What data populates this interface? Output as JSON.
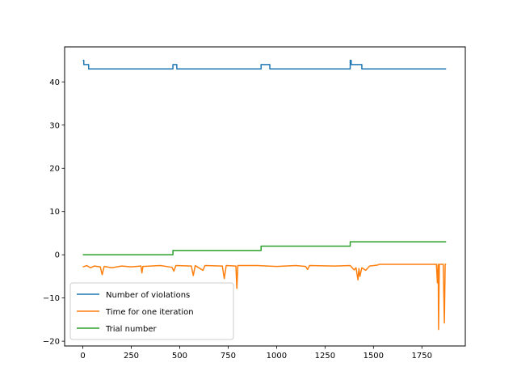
{
  "chart_data": {
    "type": "line",
    "title": "",
    "xlabel": "",
    "ylabel": "",
    "xlim": [
      -94,
      1974
    ],
    "ylim": [
      -21.1,
      48.1
    ],
    "xticks": [
      0,
      250,
      500,
      750,
      1000,
      1250,
      1500,
      1750
    ],
    "yticks": [
      -20,
      -10,
      0,
      10,
      20,
      30,
      40
    ],
    "grid": false,
    "legend_position": "lower-left",
    "series": [
      {
        "name": "Number of violations",
        "color": "#1f77b4",
        "points": [
          [
            0,
            45
          ],
          [
            5,
            45
          ],
          [
            5,
            44
          ],
          [
            30,
            44
          ],
          [
            30,
            43
          ],
          [
            465,
            43
          ],
          [
            465,
            44
          ],
          [
            485,
            44
          ],
          [
            485,
            43
          ],
          [
            920,
            43
          ],
          [
            920,
            44
          ],
          [
            965,
            44
          ],
          [
            965,
            43
          ],
          [
            1380,
            43
          ],
          [
            1380,
            45
          ],
          [
            1385,
            45
          ],
          [
            1385,
            44
          ],
          [
            1440,
            44
          ],
          [
            1440,
            43
          ],
          [
            1875,
            43
          ]
        ]
      },
      {
        "name": "Time for one iteration",
        "color": "#ff7f0e",
        "points": [
          [
            0,
            -2.8
          ],
          [
            20,
            -2.5
          ],
          [
            40,
            -3.0
          ],
          [
            60,
            -2.6
          ],
          [
            90,
            -2.8
          ],
          [
            100,
            -4.6
          ],
          [
            110,
            -2.7
          ],
          [
            150,
            -3.0
          ],
          [
            200,
            -2.6
          ],
          [
            250,
            -2.8
          ],
          [
            300,
            -2.6
          ],
          [
            305,
            -4.2
          ],
          [
            310,
            -2.7
          ],
          [
            400,
            -2.5
          ],
          [
            460,
            -2.9
          ],
          [
            470,
            -3.8
          ],
          [
            480,
            -2.5
          ],
          [
            560,
            -2.6
          ],
          [
            570,
            -4.8
          ],
          [
            580,
            -2.5
          ],
          [
            620,
            -3.6
          ],
          [
            630,
            -2.5
          ],
          [
            720,
            -2.6
          ],
          [
            730,
            -5.5
          ],
          [
            740,
            -2.5
          ],
          [
            790,
            -2.6
          ],
          [
            795,
            -7.8
          ],
          [
            800,
            -2.5
          ],
          [
            900,
            -2.5
          ],
          [
            1000,
            -2.7
          ],
          [
            1100,
            -2.5
          ],
          [
            1150,
            -2.7
          ],
          [
            1160,
            -3.4
          ],
          [
            1170,
            -2.5
          ],
          [
            1300,
            -2.6
          ],
          [
            1380,
            -2.5
          ],
          [
            1400,
            -3.5
          ],
          [
            1410,
            -3.0
          ],
          [
            1420,
            -5.8
          ],
          [
            1425,
            -3.2
          ],
          [
            1430,
            -5.0
          ],
          [
            1440,
            -3.0
          ],
          [
            1460,
            -3.6
          ],
          [
            1480,
            -2.6
          ],
          [
            1520,
            -2.4
          ],
          [
            1530,
            -2.2
          ],
          [
            1600,
            -2.2
          ],
          [
            1700,
            -2.2
          ],
          [
            1800,
            -2.2
          ],
          [
            1825,
            -2.2
          ],
          [
            1830,
            -6.5
          ],
          [
            1834,
            -2.2
          ],
          [
            1836,
            -17.3
          ],
          [
            1840,
            -2.2
          ],
          [
            1860,
            -2.2
          ],
          [
            1866,
            -15.8
          ],
          [
            1870,
            -2.2
          ],
          [
            1875,
            -2.2
          ]
        ]
      },
      {
        "name": "Trial number",
        "color": "#2ca02c",
        "points": [
          [
            0,
            0
          ],
          [
            465,
            0
          ],
          [
            465,
            1
          ],
          [
            920,
            1
          ],
          [
            920,
            2
          ],
          [
            1380,
            2
          ],
          [
            1380,
            3
          ],
          [
            1875,
            3
          ]
        ]
      }
    ]
  }
}
